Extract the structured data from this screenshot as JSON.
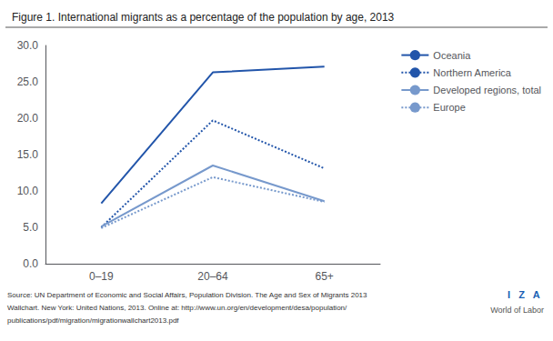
{
  "chart_data": {
    "type": "line",
    "title": "Figure 1. International migrants as a percentage of the population by age, 2013",
    "categories": [
      "0–19",
      "20–64",
      "65+"
    ],
    "series": [
      {
        "name": "Oceania",
        "color": "#2255aa",
        "line_style": "solid",
        "values": [
          8.3,
          26.3,
          27.1
        ]
      },
      {
        "name": "Northern America",
        "color": "#2255aa",
        "line_style": "dotted",
        "values": [
          5.0,
          19.7,
          13.1
        ]
      },
      {
        "name": "Developed regions, total",
        "color": "#7799cc",
        "line_style": "solid",
        "values": [
          5.1,
          13.5,
          8.6
        ]
      },
      {
        "name": "Europe",
        "color": "#7799cc",
        "line_style": "dotted",
        "values": [
          4.9,
          11.9,
          8.5
        ]
      }
    ],
    "ylim": [
      0.0,
      30.0
    ],
    "yticks": [
      {
        "value": 0,
        "label": "0.0"
      },
      {
        "value": 5,
        "label": "5.0"
      },
      {
        "value": 10,
        "label": "10.0"
      },
      {
        "value": 15,
        "label": "15.0"
      },
      {
        "value": 20,
        "label": "20.0"
      },
      {
        "value": 25,
        "label": "25.0"
      },
      {
        "value": 30,
        "label": "30.0"
      }
    ],
    "grid": false,
    "legend": "upper right",
    "annotations": [
      "Source: UN Department of Economic and Social Affairs, Population Division. The Age and Sex of Migrants 2013",
      "Wallchart. New York: United Nations, 2013. Online at: http://www.un.org/en/development/desa/population/",
      "publications/pdf/migration/migrationwallchart2013.pdf",
      "I   Z   A",
      "World of Labor"
    ]
  }
}
